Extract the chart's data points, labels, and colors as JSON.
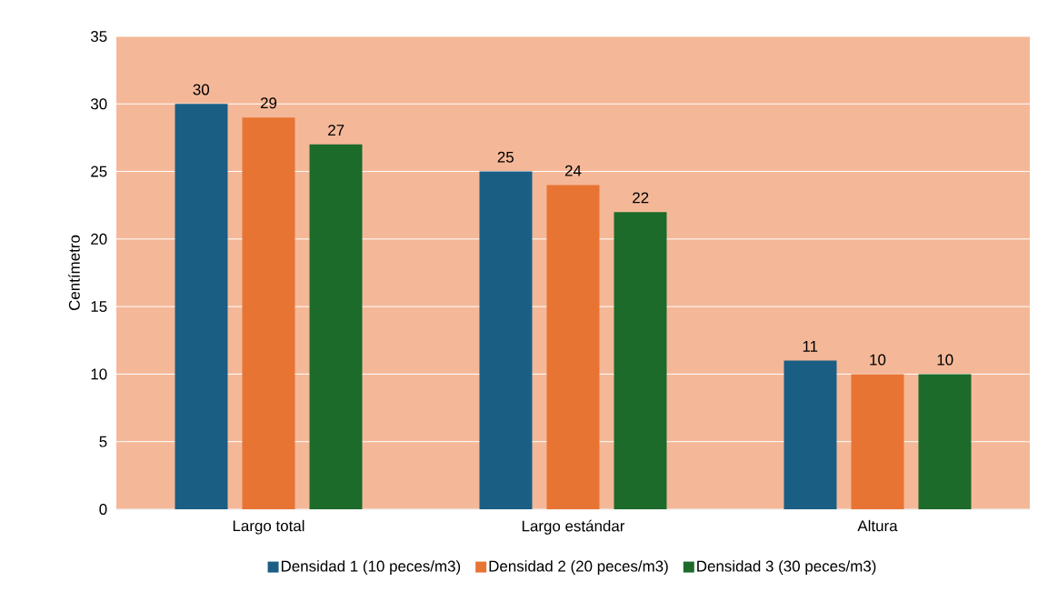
{
  "chart_data": {
    "type": "bar",
    "ylabel": "Centímetro",
    "categories": [
      "Largo total",
      "Largo estándar",
      "Altura"
    ],
    "series": [
      {
        "name": "Densidad 1 (10 peces/m3)",
        "color": "#1b5e84",
        "values": [
          30,
          25,
          11
        ]
      },
      {
        "name": "Densidad 2 (20 peces/m3)",
        "color": "#e87433",
        "values": [
          29,
          24,
          10
        ]
      },
      {
        "name": "Densidad 3 (30 peces/m3)",
        "color": "#1c6b2a",
        "values": [
          27,
          22,
          10
        ]
      }
    ],
    "ylim": [
      0,
      35
    ],
    "yticks": [
      0,
      5,
      10,
      15,
      20,
      25,
      30,
      35
    ],
    "grid": "y",
    "legend": "bottom",
    "data_labels": true
  }
}
